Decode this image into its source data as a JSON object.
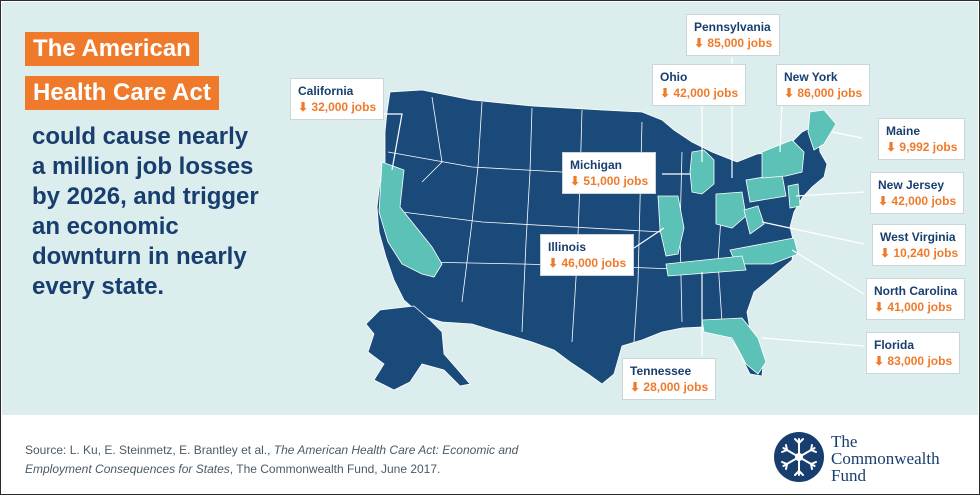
{
  "title": {
    "line1": "The American",
    "line2": "Health Care Act"
  },
  "headline": [
    "could cause nearly",
    "a million job losses",
    "by 2026, and trigger",
    "an economic",
    "downturn in nearly",
    "every state."
  ],
  "callouts": {
    "california": {
      "state": "California",
      "jobs": "32,000 jobs"
    },
    "pennsylvania": {
      "state": "Pennsylvania",
      "jobs": "85,000 jobs"
    },
    "ohio": {
      "state": "Ohio",
      "jobs": "42,000 jobs"
    },
    "new_york": {
      "state": "New York",
      "jobs": "86,000 jobs"
    },
    "maine": {
      "state": "Maine",
      "jobs": "9,992 jobs"
    },
    "michigan": {
      "state": "Michigan",
      "jobs": "51,000 jobs"
    },
    "new_jersey": {
      "state": "New Jersey",
      "jobs": "42,000 jobs"
    },
    "illinois": {
      "state": "Illinois",
      "jobs": "46,000 jobs"
    },
    "west_virginia": {
      "state": "West Virginia",
      "jobs": "10,240 jobs"
    },
    "north_carolina": {
      "state": "North Carolina",
      "jobs": "41,000 jobs"
    },
    "florida": {
      "state": "Florida",
      "jobs": "83,000 jobs"
    },
    "tennessee": {
      "state": "Tennessee",
      "jobs": "28,000 jobs"
    }
  },
  "source": {
    "prefix": "Source: L. Ku, E. Steinmetz, E. Brantley et al., ",
    "title_a": "The American Health Care Act: Economic and",
    "title_b": "Employment Consequences for States",
    "suffix": ", The Commonwealth Fund, June 2017."
  },
  "logo": {
    "line1": "The",
    "line2": "Commonwealth",
    "line3": "Fund"
  },
  "colors": {
    "background": "#dcedee",
    "orange": "#f07a2b",
    "navy": "#173e6e",
    "state_dark": "#1a4a7a",
    "state_highlight": "#5cc1b7"
  },
  "icons": {
    "down_arrow": "down-arrow-icon",
    "logo": "commonwealth-fund-snowflake-icon"
  }
}
